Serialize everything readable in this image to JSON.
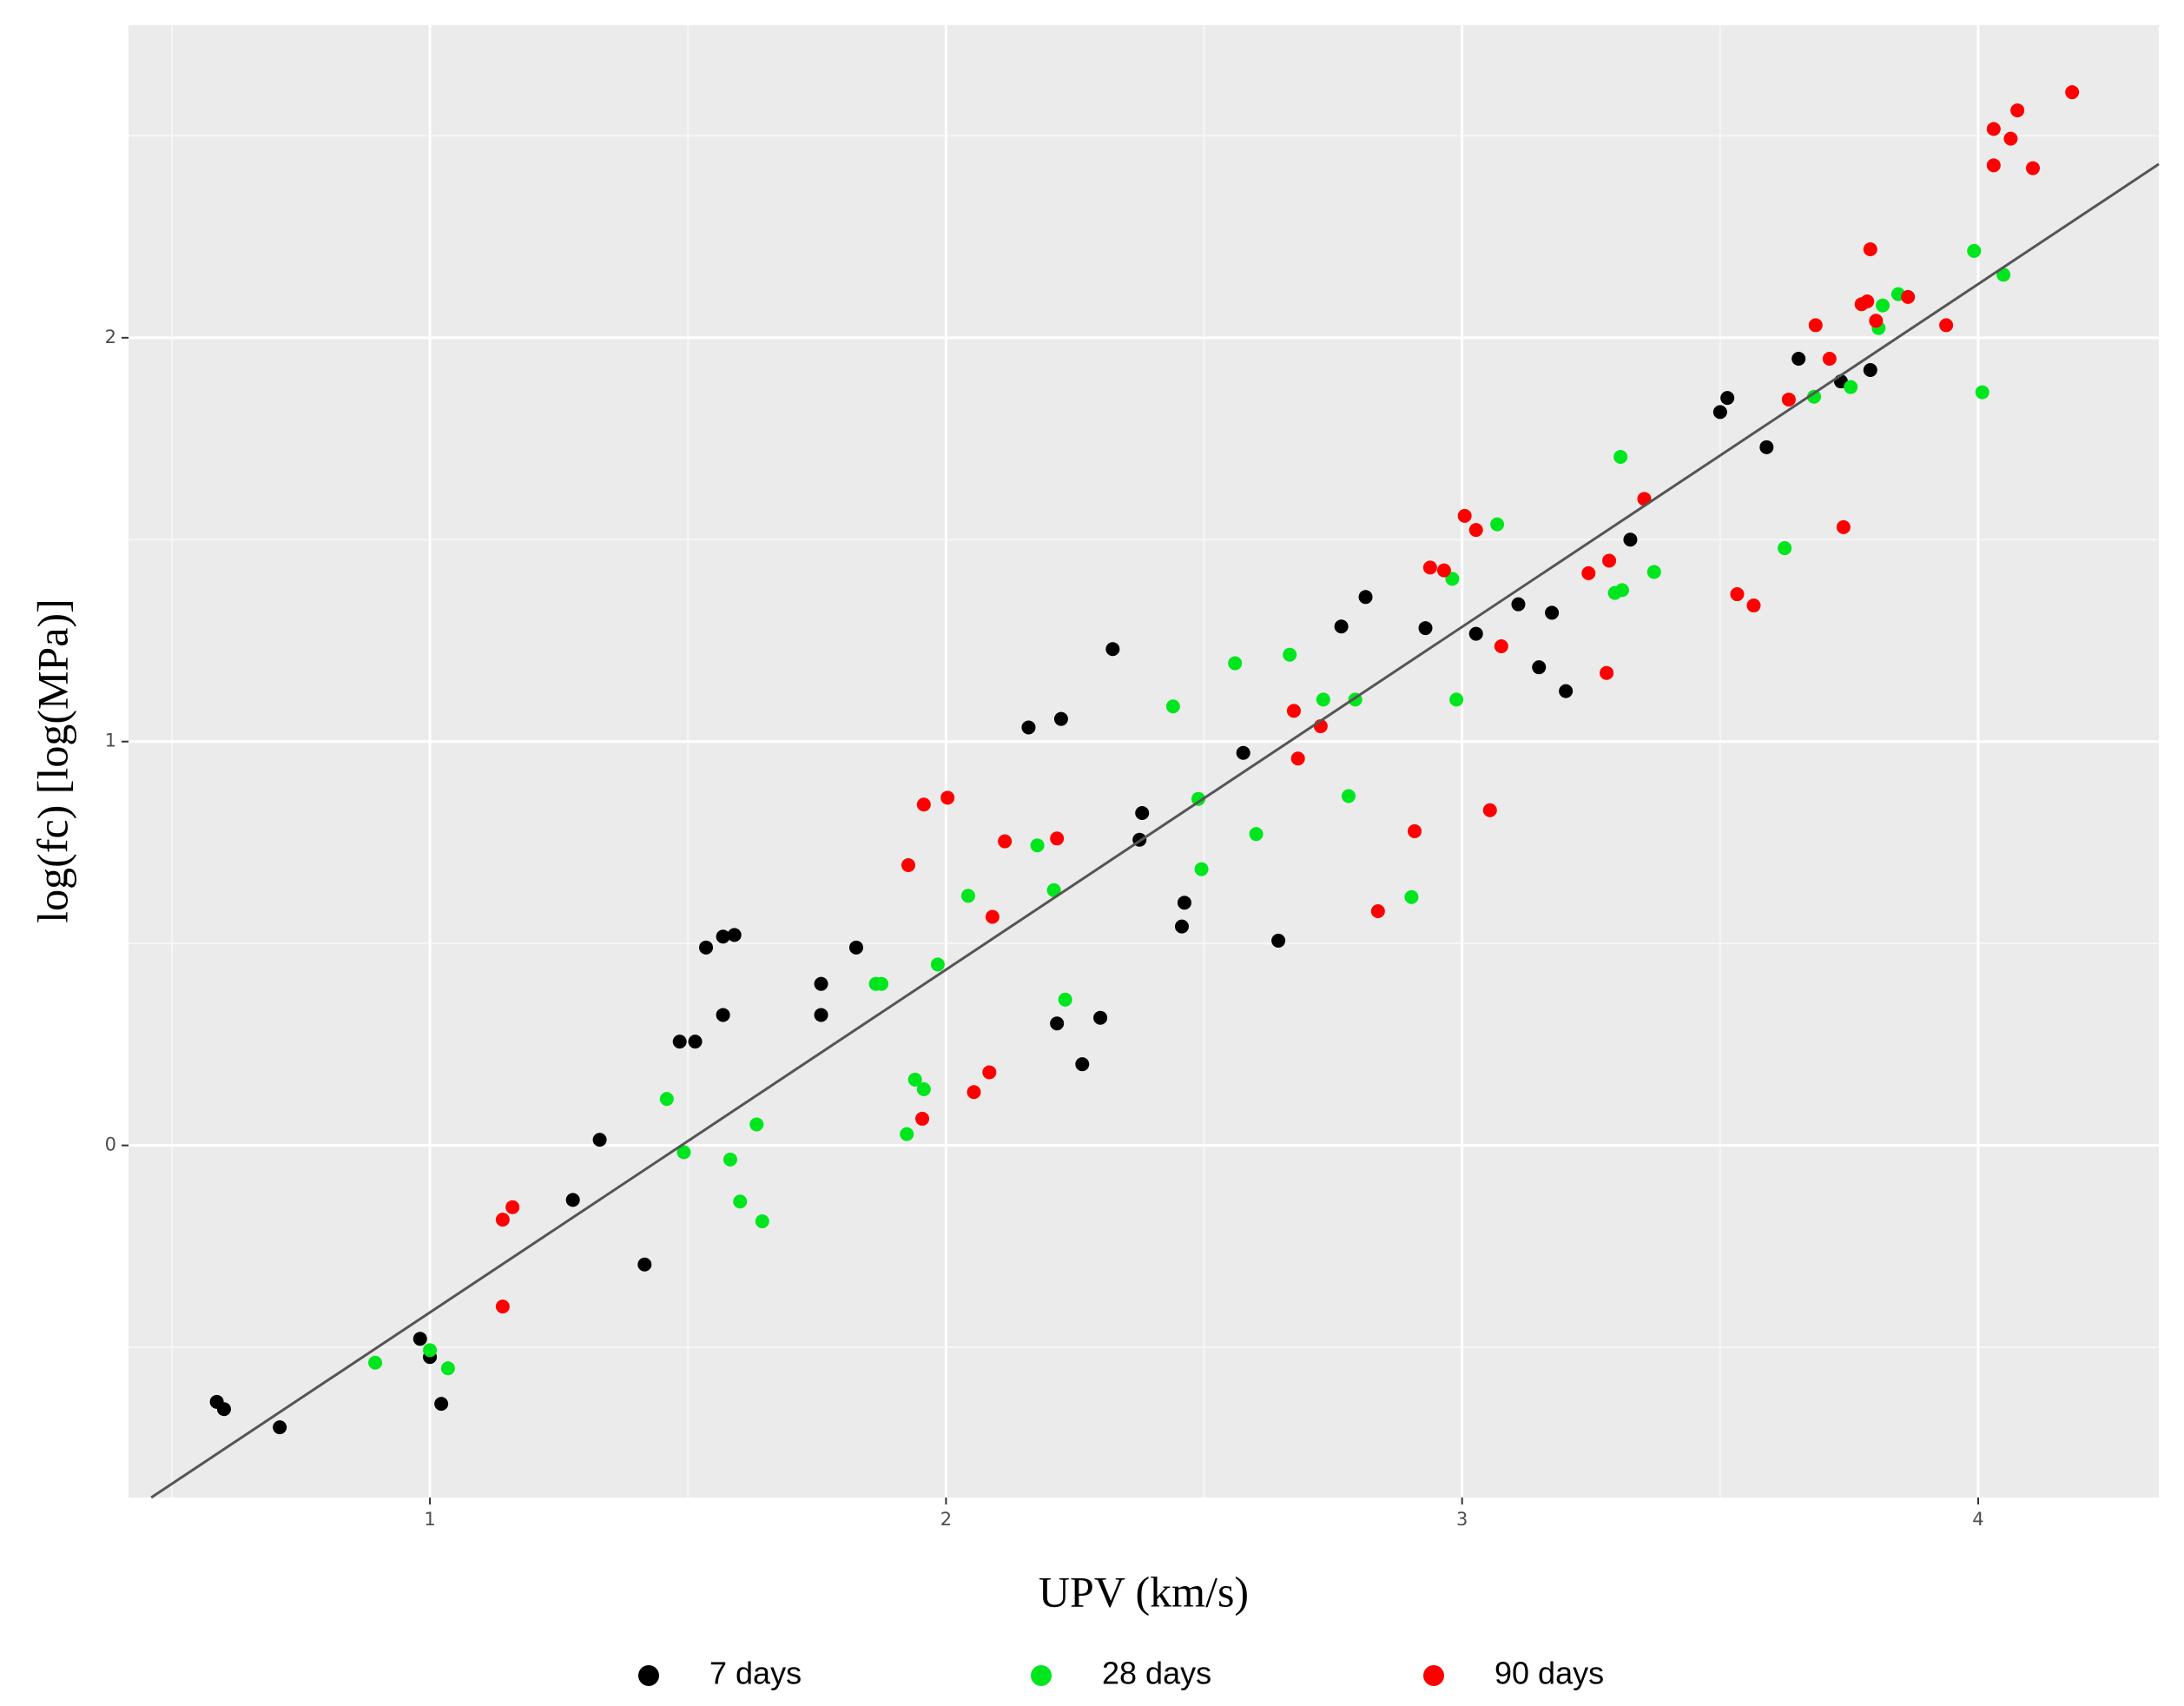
{
  "chart_data": {
    "type": "scatter",
    "xlabel": "UPV (km/s)",
    "ylabel": "log(fc) [log(MPa)]",
    "xlim": [
      0.416,
      4.35
    ],
    "ylim": [
      -0.872,
      2.774
    ],
    "xticks": [
      1,
      2,
      3,
      4
    ],
    "yticks": [
      0,
      1,
      2
    ],
    "grid": true,
    "legend": "bottom",
    "fit_line": {
      "color": "#555555",
      "x": [
        0.46,
        4.35
      ],
      "y": [
        -0.872,
        2.43
      ]
    },
    "series": [
      {
        "name": "7 days",
        "color": "#000000",
        "x": [
          0.587,
          0.601,
          0.709,
          0.981,
          1.0,
          1.022,
          1.277,
          1.329,
          1.416,
          1.484,
          1.514,
          1.535,
          1.568,
          1.568,
          1.59,
          1.758,
          1.758,
          1.826,
          2.16,
          2.223,
          2.215,
          2.264,
          2.299,
          2.323,
          2.375,
          2.38,
          2.457,
          2.462,
          2.576,
          2.644,
          2.766,
          2.813,
          2.929,
          3.027,
          3.109,
          3.149,
          3.174,
          3.201,
          3.326,
          3.5,
          3.514,
          3.59,
          3.652,
          3.734,
          3.791
        ],
        "values": [
          -0.635,
          -0.653,
          -0.698,
          -0.479,
          -0.524,
          -0.64,
          -0.135,
          0.014,
          -0.295,
          0.257,
          0.257,
          0.49,
          0.517,
          0.323,
          0.521,
          0.4,
          0.323,
          0.49,
          1.035,
          1.056,
          0.302,
          0.201,
          0.316,
          1.229,
          0.757,
          0.823,
          0.542,
          0.601,
          0.972,
          0.507,
          1.285,
          1.358,
          1.281,
          1.267,
          1.34,
          1.184,
          1.319,
          1.125,
          1.5,
          1.816,
          1.851,
          1.729,
          1.948,
          1.892,
          1.92
        ]
      },
      {
        "name": "28 days",
        "color": "#00e61e",
        "x": [
          0.894,
          1.0,
          1.035,
          1.459,
          1.492,
          1.582,
          1.601,
          1.633,
          1.644,
          1.864,
          1.875,
          1.924,
          1.94,
          1.957,
          1.984,
          2.043,
          2.177,
          2.209,
          2.231,
          2.44,
          2.489,
          2.495,
          2.56,
          2.601,
          2.666,
          2.731,
          2.78,
          2.793,
          2.902,
          2.981,
          2.989,
          3.068,
          3.296,
          3.31,
          3.307,
          3.372,
          3.625,
          3.682,
          3.753,
          3.807,
          3.815,
          3.845,
          3.992,
          4.008,
          4.049
        ],
        "values": [
          -0.538,
          -0.507,
          -0.552,
          0.115,
          -0.017,
          -0.035,
          -0.139,
          0.052,
          -0.188,
          0.4,
          0.4,
          0.028,
          0.163,
          0.139,
          0.448,
          0.618,
          0.743,
          0.632,
          0.361,
          1.087,
          0.858,
          0.684,
          1.194,
          0.771,
          1.215,
          1.104,
          0.865,
          1.104,
          0.615,
          1.403,
          1.104,
          1.538,
          1.368,
          1.375,
          1.705,
          1.42,
          1.479,
          1.854,
          1.878,
          2.024,
          2.08,
          2.108,
          2.215,
          1.865,
          2.156
        ]
      },
      {
        "name": "90 days",
        "color": "#ff0000",
        "x": [
          1.141,
          1.16,
          1.141,
          1.927,
          1.957,
          2.003,
          1.954,
          2.054,
          2.084,
          2.09,
          2.114,
          2.215,
          2.674,
          2.682,
          2.726,
          2.837,
          2.908,
          2.938,
          2.965,
          3.005,
          3.027,
          3.054,
          3.076,
          3.245,
          3.28,
          3.285,
          3.353,
          3.533,
          3.565,
          3.633,
          3.685,
          3.712,
          3.739,
          3.774,
          3.791,
          3.802,
          3.785,
          3.864,
          3.938,
          4.03,
          4.03,
          4.063,
          4.076,
          4.106,
          4.182
        ],
        "values": [
          -0.184,
          -0.153,
          -0.399,
          0.694,
          0.844,
          0.861,
          0.066,
          0.132,
          0.181,
          0.566,
          0.753,
          0.76,
          1.076,
          0.958,
          1.038,
          0.58,
          0.778,
          1.431,
          1.424,
          1.559,
          1.524,
          0.83,
          1.236,
          1.417,
          1.17,
          1.448,
          1.601,
          1.365,
          1.337,
          1.847,
          2.031,
          1.948,
          1.531,
          2.083,
          2.219,
          2.042,
          2.09,
          2.101,
          2.031,
          2.517,
          2.427,
          2.493,
          2.563,
          2.42,
          2.608
        ]
      }
    ]
  }
}
